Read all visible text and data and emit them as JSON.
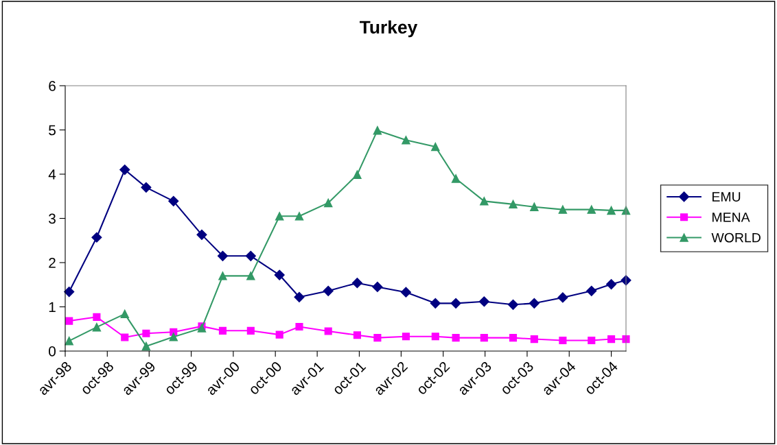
{
  "chart_data": {
    "type": "line",
    "title": "Turkey",
    "x": [
      "1998-04-18",
      "1998-08-16",
      "1998-12-16",
      "1999-03-19",
      "1999-07-16",
      "1999-11-16",
      "2000-02-15",
      "2000-06-16",
      "2000-10-19",
      "2001-01-13",
      "2001-05-19",
      "2001-09-22",
      "2001-12-19",
      "2002-04-22",
      "2002-08-28",
      "2002-11-25",
      "2003-03-28",
      "2003-08-01",
      "2003-11-01",
      "2004-03-04",
      "2004-07-07",
      "2004-10-01",
      "2004-12-04"
    ],
    "series": [
      {
        "name": "EMU",
        "color": "#000080",
        "marker": "diamond",
        "values": [
          1.34,
          2.57,
          4.1,
          3.7,
          3.39,
          2.63,
          2.15,
          2.15,
          1.72,
          1.22,
          1.36,
          1.54,
          1.45,
          1.33,
          1.08,
          1.08,
          1.12,
          1.05,
          1.08,
          1.21,
          1.36,
          1.51,
          1.6
        ]
      },
      {
        "name": "MENA",
        "color": "#ff00ff",
        "marker": "square",
        "values": [
          0.68,
          0.77,
          0.31,
          0.4,
          0.43,
          0.56,
          0.46,
          0.46,
          0.37,
          0.55,
          0.45,
          0.36,
          0.3,
          0.33,
          0.33,
          0.3,
          0.3,
          0.3,
          0.27,
          0.24,
          0.24,
          0.27,
          0.27
        ]
      },
      {
        "name": "WORLD",
        "color": "#339966",
        "marker": "triangle",
        "values": [
          0.23,
          0.54,
          0.84,
          0.11,
          0.32,
          0.52,
          1.7,
          1.7,
          3.05,
          3.05,
          3.35,
          3.99,
          4.99,
          4.77,
          4.62,
          3.9,
          3.39,
          3.32,
          3.26,
          3.2,
          3.2,
          3.18,
          3.18
        ]
      }
    ],
    "xlim": [
      "1998-04-01",
      "2004-12-04"
    ],
    "xticks": [
      {
        "value": "1998-04-01",
        "label": "avr-98"
      },
      {
        "value": "1998-10-01",
        "label": "oct-98"
      },
      {
        "value": "1999-04-01",
        "label": "avr-99"
      },
      {
        "value": "1999-10-01",
        "label": "oct-99"
      },
      {
        "value": "2000-04-01",
        "label": "avr-00"
      },
      {
        "value": "2000-10-01",
        "label": "oct-00"
      },
      {
        "value": "2001-04-01",
        "label": "avr-01"
      },
      {
        "value": "2001-10-01",
        "label": "oct-01"
      },
      {
        "value": "2002-04-01",
        "label": "avr-02"
      },
      {
        "value": "2002-10-01",
        "label": "oct-02"
      },
      {
        "value": "2003-04-01",
        "label": "avr-03"
      },
      {
        "value": "2003-10-01",
        "label": "oct-03"
      },
      {
        "value": "2004-04-01",
        "label": "avr-04"
      },
      {
        "value": "2004-10-01",
        "label": "oct-04"
      }
    ],
    "ylim": [
      0,
      6
    ],
    "yticks": [
      0,
      1,
      2,
      3,
      4,
      5,
      6
    ],
    "grid": false,
    "legend": "right",
    "line_style": "solid"
  }
}
